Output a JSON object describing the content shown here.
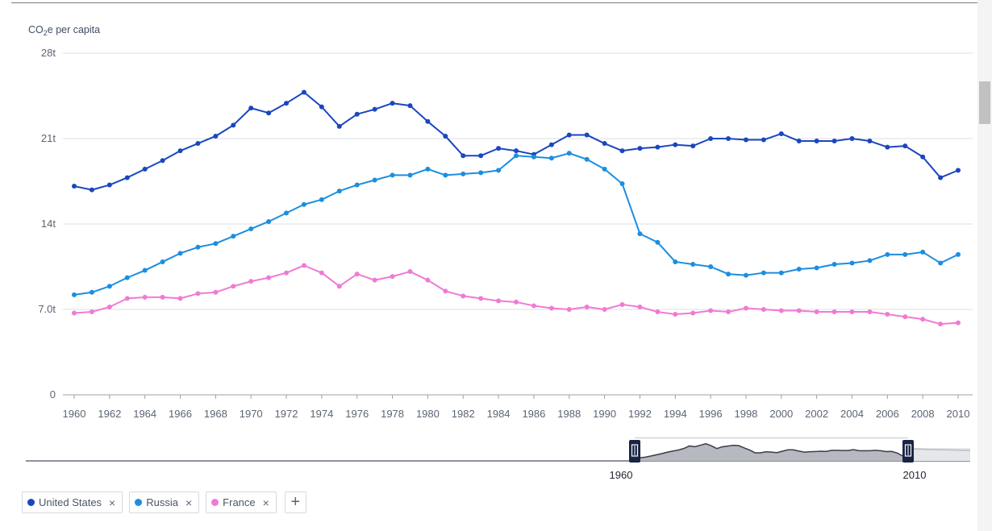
{
  "chart_data": {
    "type": "line",
    "ylabel_prefix": "CO",
    "ylabel_sub": "2",
    "ylabel_suffix": "e per capita",
    "ylim": [
      0,
      28
    ],
    "ytick_values": [
      0,
      7,
      14,
      21,
      28
    ],
    "ytick_labels": [
      "0",
      "7.0t",
      "14t",
      "21t",
      "28t"
    ],
    "xlim": [
      1960,
      2010
    ],
    "xtick_labels": [
      "1960",
      "1962",
      "1964",
      "1966",
      "1968",
      "1970",
      "1972",
      "1974",
      "1976",
      "1978",
      "1980",
      "1982",
      "1984",
      "1986",
      "1988",
      "1990",
      "1992",
      "1994",
      "1996",
      "1998",
      "2000",
      "2002",
      "2004",
      "2006",
      "2008",
      "2010"
    ],
    "grid": "horizontal",
    "x": [
      1960,
      1961,
      1962,
      1963,
      1964,
      1965,
      1966,
      1967,
      1968,
      1969,
      1970,
      1971,
      1972,
      1973,
      1974,
      1975,
      1976,
      1977,
      1978,
      1979,
      1980,
      1981,
      1982,
      1983,
      1984,
      1985,
      1986,
      1987,
      1988,
      1989,
      1990,
      1991,
      1992,
      1993,
      1994,
      1995,
      1996,
      1997,
      1998,
      1999,
      2000,
      2001,
      2002,
      2003,
      2004,
      2005,
      2006,
      2007,
      2008,
      2009,
      2010
    ],
    "series": [
      {
        "name": "United States",
        "color": "#1a46c0",
        "values": [
          17.1,
          16.8,
          17.2,
          17.8,
          18.5,
          19.2,
          20.0,
          20.6,
          21.2,
          22.1,
          23.5,
          23.1,
          23.9,
          24.8,
          23.6,
          22.0,
          23.0,
          23.4,
          23.9,
          23.7,
          22.4,
          21.2,
          19.6,
          19.6,
          20.2,
          20.0,
          19.7,
          20.5,
          21.3,
          21.3,
          20.6,
          20.0,
          20.2,
          20.3,
          20.5,
          20.4,
          21.0,
          21.0,
          20.9,
          20.9,
          21.4,
          20.8,
          20.8,
          20.8,
          21.0,
          20.8,
          20.3,
          20.4,
          19.5,
          17.8,
          18.4
        ]
      },
      {
        "name": "Russia",
        "color": "#1b8ee0",
        "values": [
          8.2,
          8.4,
          8.9,
          9.6,
          10.2,
          10.9,
          11.6,
          12.1,
          12.4,
          13.0,
          13.6,
          14.2,
          14.9,
          15.6,
          16.0,
          16.7,
          17.2,
          17.6,
          18.0,
          18.0,
          18.5,
          18.0,
          18.1,
          18.2,
          18.4,
          19.6,
          19.5,
          19.4,
          19.8,
          19.3,
          18.5,
          17.3,
          13.2,
          12.5,
          10.9,
          10.7,
          10.5,
          9.9,
          9.8,
          10.0,
          10.0,
          10.3,
          10.4,
          10.7,
          10.8,
          11.0,
          11.5,
          11.5,
          11.7,
          10.8,
          11.5
        ]
      },
      {
        "name": "France",
        "color": "#f07ad5",
        "values": [
          6.7,
          6.8,
          7.2,
          7.9,
          8.0,
          8.0,
          7.9,
          8.3,
          8.4,
          8.9,
          9.3,
          9.6,
          10.0,
          10.6,
          10.0,
          8.9,
          9.9,
          9.4,
          9.7,
          10.1,
          9.4,
          8.5,
          8.1,
          7.9,
          7.7,
          7.6,
          7.3,
          7.1,
          7.0,
          7.2,
          7.0,
          7.4,
          7.2,
          6.8,
          6.6,
          6.7,
          6.9,
          6.8,
          7.1,
          7.0,
          6.9,
          6.9,
          6.8,
          6.8,
          6.8,
          6.8,
          6.6,
          6.4,
          6.2,
          5.8,
          5.9
        ]
      }
    ]
  },
  "range_slider": {
    "start_label": "1960",
    "end_label": "2010",
    "start_handle_icon": "grip-lines-icon",
    "end_handle_icon": "grip-lines-icon",
    "handle_color": "#1a2444"
  },
  "legend_chips": [
    {
      "label": "United States",
      "remove_glyph": "×",
      "color": "#1a46c0"
    },
    {
      "label": "Russia",
      "remove_glyph": "×",
      "color": "#1b8ee0"
    },
    {
      "label": "France",
      "remove_glyph": "×",
      "color": "#f07ad5"
    }
  ],
  "add_button": {
    "glyph": "+",
    "icon": "plus-icon"
  }
}
